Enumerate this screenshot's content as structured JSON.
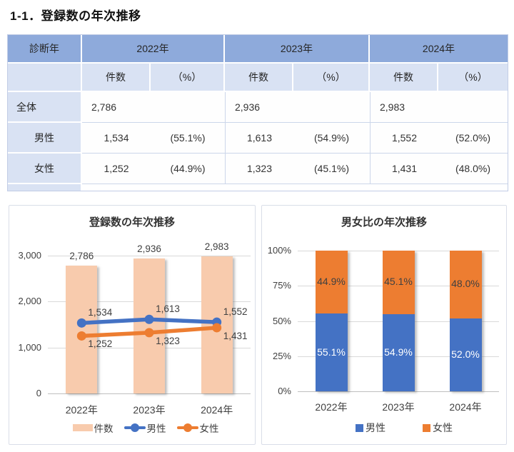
{
  "page": {
    "title": "1-1．登録数の年次推移"
  },
  "table": {
    "corner_label": "診断年",
    "year_groups": [
      "2022年",
      "2023年",
      "2024年"
    ],
    "sub_headers": [
      "件数",
      "（%）"
    ],
    "rows": [
      {
        "label": "全体",
        "merged": true,
        "values": [
          {
            "count": "2,786",
            "pct": ""
          },
          {
            "count": "2,936",
            "pct": ""
          },
          {
            "count": "2,983",
            "pct": ""
          }
        ]
      },
      {
        "label": "男性",
        "merged": false,
        "values": [
          {
            "count": "1,534",
            "pct": "(55.1%)"
          },
          {
            "count": "1,613",
            "pct": "(54.9%)"
          },
          {
            "count": "1,552",
            "pct": "(52.0%)"
          }
        ]
      },
      {
        "label": "女性",
        "merged": false,
        "values": [
          {
            "count": "1,252",
            "pct": "(44.9%)"
          },
          {
            "count": "1,323",
            "pct": "(45.1%)"
          },
          {
            "count": "1,431",
            "pct": "(48.0%)"
          }
        ]
      }
    ]
  },
  "chart_data": [
    {
      "type": "bar",
      "subtype": "combo-bar-line",
      "title": "登録数の年次推移",
      "categories": [
        "2022年",
        "2023年",
        "2024年"
      ],
      "series": [
        {
          "name": "件数",
          "kind": "bar",
          "color": "#F8CBAD",
          "values": [
            2786,
            2936,
            2983
          ],
          "labels": [
            "2,786",
            "2,936",
            "2,983"
          ]
        },
        {
          "name": "男性",
          "kind": "line",
          "color": "#4472C4",
          "values": [
            1534,
            1613,
            1552
          ],
          "labels": [
            "1,534",
            "1,613",
            "1,552"
          ]
        },
        {
          "name": "女性",
          "kind": "line",
          "color": "#ED7D31",
          "values": [
            1252,
            1323,
            1431
          ],
          "labels": [
            "1,252",
            "1,323",
            "1,431"
          ]
        }
      ],
      "xlabel": "",
      "ylabel": "",
      "ylim": [
        0,
        3000
      ],
      "yticks": [
        0,
        1000,
        2000,
        3000
      ],
      "ytick_labels": [
        "0",
        "1,000",
        "2,000",
        "3,000"
      ],
      "grid": true,
      "legend_position": "bottom"
    },
    {
      "type": "bar",
      "subtype": "stacked-bar-100",
      "title": "男女比の年次推移",
      "categories": [
        "2022年",
        "2023年",
        "2024年"
      ],
      "series": [
        {
          "name": "男性",
          "color": "#4472C4",
          "values": [
            55.1,
            54.9,
            52.0
          ],
          "labels": [
            "55.1%",
            "54.9%",
            "52.0%"
          ],
          "label_color": "#ffffff"
        },
        {
          "name": "女性",
          "color": "#ED7D31",
          "values": [
            44.9,
            45.1,
            48.0
          ],
          "labels": [
            "44.9%",
            "45.1%",
            "48.0%"
          ],
          "label_color": "#404040"
        }
      ],
      "xlabel": "",
      "ylabel": "",
      "ylim": [
        0,
        100
      ],
      "yticks": [
        0,
        25,
        50,
        75,
        100
      ],
      "ytick_labels": [
        "0%",
        "25%",
        "50%",
        "75%",
        "100%"
      ],
      "grid": true,
      "legend_position": "bottom"
    }
  ],
  "colors": {
    "table_header": "#8EAADB",
    "table_subheader": "#D9E2F3",
    "bar_peach": "#F8CBAD",
    "series_blue": "#4472C4",
    "series_orange": "#ED7D31",
    "gridline": "#D9D9D9"
  }
}
